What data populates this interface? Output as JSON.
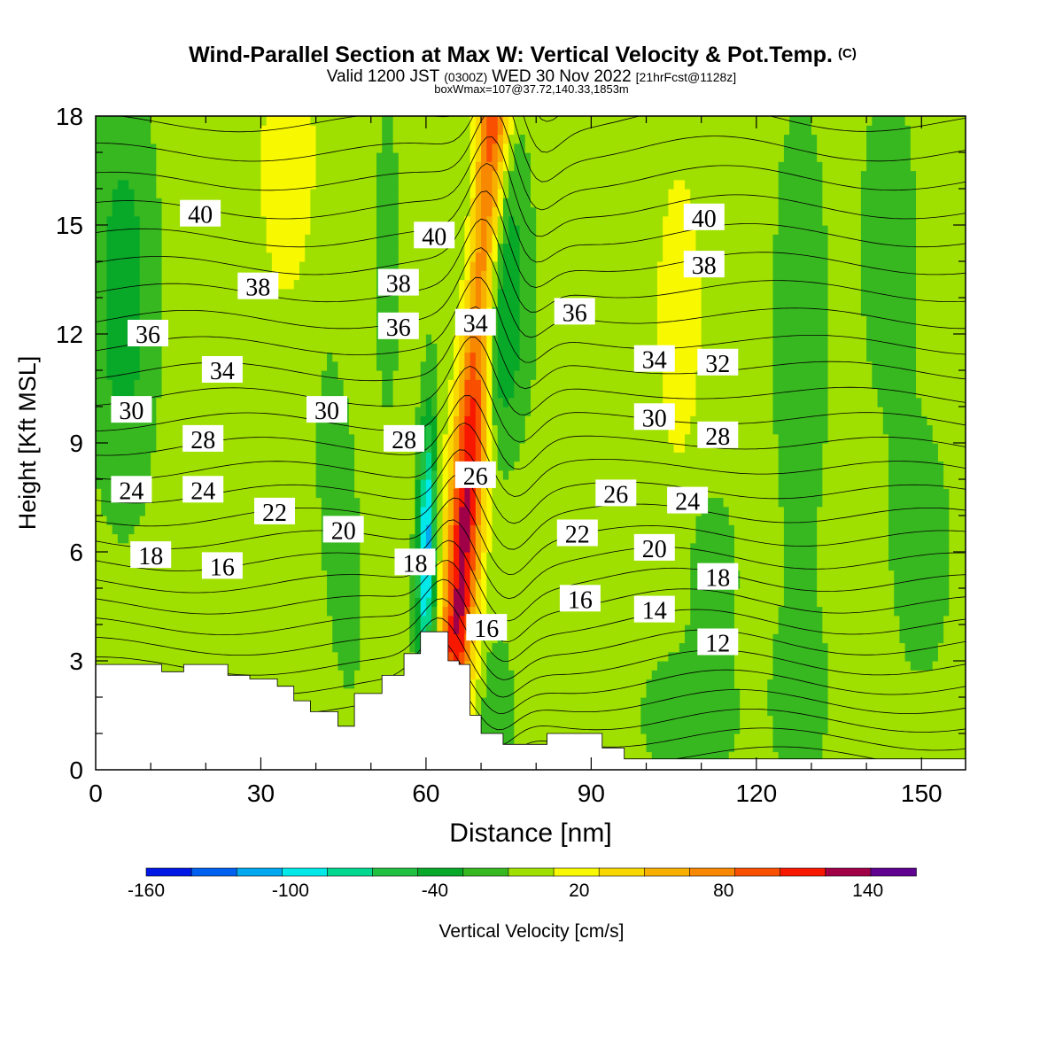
{
  "title": {
    "main": "Wind-Parallel Section at Max W: Vertical Velocity & Pot.Temp.",
    "main_mark": "(C)",
    "valid_prefix": "Valid 1200 JST",
    "valid_zulu": "(0300Z)",
    "valid_date": "WED 30 Nov 2022",
    "valid_fcst": "[21hrFcst@1128z]",
    "box": "boxWmax=107@37.72,140.33,1853m"
  },
  "chart_data": {
    "type": "contour",
    "xlabel": "Distance [nm]",
    "ylabel": "Height [Kft MSL]",
    "xlim": [
      0,
      158
    ],
    "ylim": [
      0,
      18
    ],
    "x_ticks": [
      "0",
      "30",
      "60",
      "90",
      "120",
      "150"
    ],
    "x_tick_values": [
      0,
      30,
      60,
      90,
      120,
      150
    ],
    "y_ticks": [
      "0",
      "3",
      "6",
      "9",
      "12",
      "15",
      "18"
    ],
    "y_tick_values": [
      0,
      3,
      6,
      9,
      12,
      15,
      18
    ],
    "colorbar": {
      "label": "Vertical Velocity [cm/s]",
      "tick_labels": [
        "-160",
        "-100",
        "-40",
        "20",
        "80",
        "140"
      ],
      "tick_values": [
        -160,
        -100,
        -40,
        20,
        80,
        140
      ],
      "levels": [
        -160,
        -140,
        -120,
        -100,
        -80,
        -60,
        -40,
        -20,
        0,
        20,
        40,
        60,
        80,
        100,
        120,
        140,
        160
      ],
      "colors": [
        "#0018e6",
        "#0060f0",
        "#00a8f0",
        "#00e8e8",
        "#00d890",
        "#20c040",
        "#08a828",
        "#38b820",
        "#a0e000",
        "#f8f800",
        "#f8d800",
        "#f8b000",
        "#f88800",
        "#f85000",
        "#f81800",
        "#a00048",
        "#600090"
      ]
    },
    "terrain": [
      [
        0,
        2.9
      ],
      [
        8,
        2.9
      ],
      [
        12,
        2.7
      ],
      [
        16,
        2.9
      ],
      [
        24,
        2.6
      ],
      [
        28,
        2.5
      ],
      [
        33,
        2.3
      ],
      [
        36,
        1.9
      ],
      [
        39,
        1.6
      ],
      [
        44,
        1.2
      ],
      [
        47,
        2.1
      ],
      [
        52,
        2.6
      ],
      [
        56,
        3.2
      ],
      [
        59,
        3.8
      ],
      [
        62,
        3.8
      ],
      [
        64,
        3.0
      ],
      [
        66,
        2.9
      ],
      [
        68,
        1.5
      ],
      [
        70,
        1.0
      ],
      [
        74,
        0.7
      ],
      [
        78,
        0.7
      ],
      [
        82,
        1.0
      ],
      [
        88,
        1.0
      ],
      [
        92,
        0.6
      ],
      [
        96,
        0.3
      ],
      [
        120,
        0.3
      ],
      [
        158,
        0.3
      ]
    ],
    "theta_levels": [
      12,
      14,
      16,
      18,
      20,
      22,
      24,
      26,
      28,
      30,
      32,
      34,
      36,
      38,
      40
    ],
    "contour_labels": [
      {
        "text": "40",
        "x": 19,
        "y": 15.3
      },
      {
        "text": "38",
        "x": 29.5,
        "y": 13.3
      },
      {
        "text": "36",
        "x": 9.5,
        "y": 12.0
      },
      {
        "text": "34",
        "x": 23,
        "y": 11.0
      },
      {
        "text": "30",
        "x": 6.5,
        "y": 9.9
      },
      {
        "text": "28",
        "x": 19.5,
        "y": 9.1
      },
      {
        "text": "24",
        "x": 6.5,
        "y": 7.7
      },
      {
        "text": "24",
        "x": 19.5,
        "y": 7.7
      },
      {
        "text": "22",
        "x": 32.5,
        "y": 7.1
      },
      {
        "text": "18",
        "x": 10,
        "y": 5.9
      },
      {
        "text": "16",
        "x": 23,
        "y": 5.6
      },
      {
        "text": "30",
        "x": 42,
        "y": 9.9
      },
      {
        "text": "20",
        "x": 45,
        "y": 6.6
      },
      {
        "text": "38",
        "x": 55,
        "y": 13.4
      },
      {
        "text": "36",
        "x": 55,
        "y": 12.2
      },
      {
        "text": "40",
        "x": 61.5,
        "y": 14.7
      },
      {
        "text": "28",
        "x": 56,
        "y": 9.1
      },
      {
        "text": "18",
        "x": 58,
        "y": 5.7
      },
      {
        "text": "34",
        "x": 69,
        "y": 12.3
      },
      {
        "text": "26",
        "x": 69,
        "y": 8.1
      },
      {
        "text": "16",
        "x": 71,
        "y": 3.9
      },
      {
        "text": "36",
        "x": 87,
        "y": 12.6
      },
      {
        "text": "26",
        "x": 94.5,
        "y": 7.6
      },
      {
        "text": "22",
        "x": 87.5,
        "y": 6.5
      },
      {
        "text": "16",
        "x": 88,
        "y": 4.7
      },
      {
        "text": "34",
        "x": 101.5,
        "y": 11.3
      },
      {
        "text": "30",
        "x": 101.5,
        "y": 9.7
      },
      {
        "text": "20",
        "x": 101.5,
        "y": 6.1
      },
      {
        "text": "14",
        "x": 101.5,
        "y": 4.4
      },
      {
        "text": "40",
        "x": 110.5,
        "y": 15.2
      },
      {
        "text": "38",
        "x": 110.5,
        "y": 13.9
      },
      {
        "text": "32",
        "x": 113,
        "y": 11.2
      },
      {
        "text": "28",
        "x": 113,
        "y": 9.2
      },
      {
        "text": "24",
        "x": 107.5,
        "y": 7.4
      },
      {
        "text": "18",
        "x": 113,
        "y": 5.3
      },
      {
        "text": "12",
        "x": 113,
        "y": 3.5
      }
    ]
  }
}
